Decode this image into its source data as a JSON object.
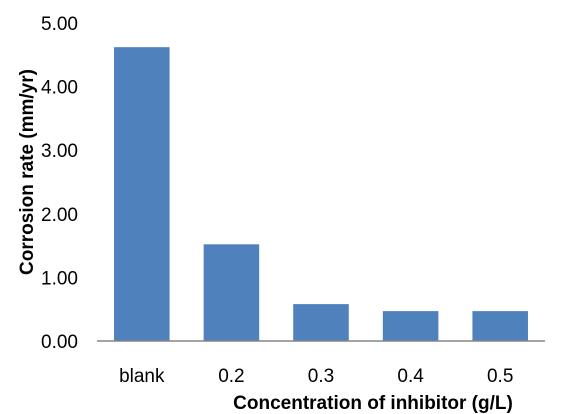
{
  "chart_data": {
    "type": "bar",
    "title": "",
    "xlabel": "Concentration of inhibitor (g/L)",
    "ylabel": "Corrosion rate (mm/yr)",
    "categories": [
      "blank",
      "0.2",
      "0.3",
      "0.4",
      "0.5"
    ],
    "values": [
      4.62,
      1.52,
      0.58,
      0.47,
      0.47
    ],
    "ylim": [
      0,
      5
    ],
    "yticks": [
      "0.00",
      "1.00",
      "2.00",
      "3.00",
      "4.00",
      "5.00"
    ],
    "grid": false,
    "legend": "none",
    "bar_color": "#4f81bd"
  }
}
